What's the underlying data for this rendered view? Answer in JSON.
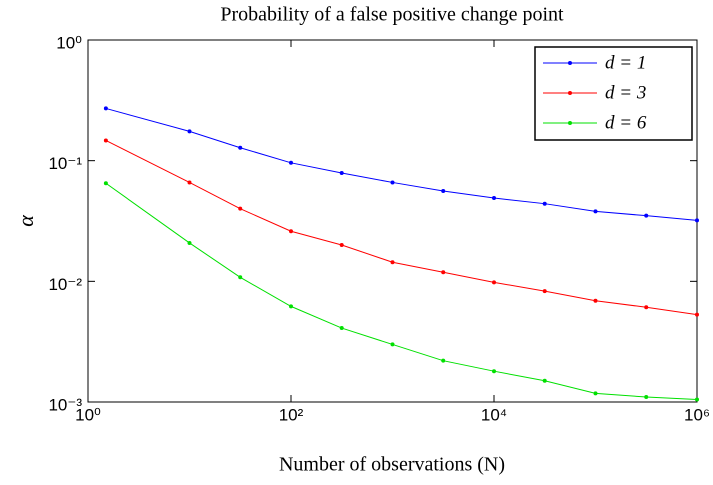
{
  "chart_data": {
    "type": "line",
    "title": "Probability of a false positive change point",
    "x_label": "Number of observations (N)",
    "y_label": "α",
    "x_scale": "log",
    "y_scale": "log",
    "x": [
      1.5,
      10,
      31.6,
      100,
      316,
      1000,
      3160,
      10000,
      31600,
      100000,
      316000,
      1000000
    ],
    "series": [
      {
        "name": "d = 1",
        "color": "#0000ff",
        "values": [
          0.271,
          0.175,
          0.128,
          0.096,
          0.079,
          0.066,
          0.056,
          0.049,
          0.044,
          0.038,
          0.035,
          0.032
        ]
      },
      {
        "name": "d = 3",
        "color": "#ff0000",
        "values": [
          0.147,
          0.066,
          0.04,
          0.026,
          0.02,
          0.0144,
          0.0119,
          0.0098,
          0.0083,
          0.0069,
          0.0061,
          0.0053
        ]
      },
      {
        "name": "d = 6",
        "color": "#00e000",
        "values": [
          0.065,
          0.0208,
          0.0108,
          0.0062,
          0.0041,
          0.003,
          0.0022,
          0.0018,
          0.0015,
          0.00118,
          0.0011,
          0.00105
        ]
      }
    ],
    "xlim": [
      1,
      1000000
    ],
    "ylim": [
      0.001,
      1
    ],
    "xticks": [
      {
        "value": 1,
        "label": "10⁰"
      },
      {
        "value": 100,
        "label": "10²"
      },
      {
        "value": 10000,
        "label": "10⁴"
      },
      {
        "value": 1000000,
        "label": "10⁶"
      }
    ],
    "yticks": [
      {
        "value": 0.001,
        "label": "10⁻³"
      },
      {
        "value": 0.01,
        "label": "10⁻²"
      },
      {
        "value": 0.1,
        "label": "10⁻¹"
      },
      {
        "value": 1,
        "label": "10⁰"
      }
    ],
    "legend": "upper right"
  }
}
